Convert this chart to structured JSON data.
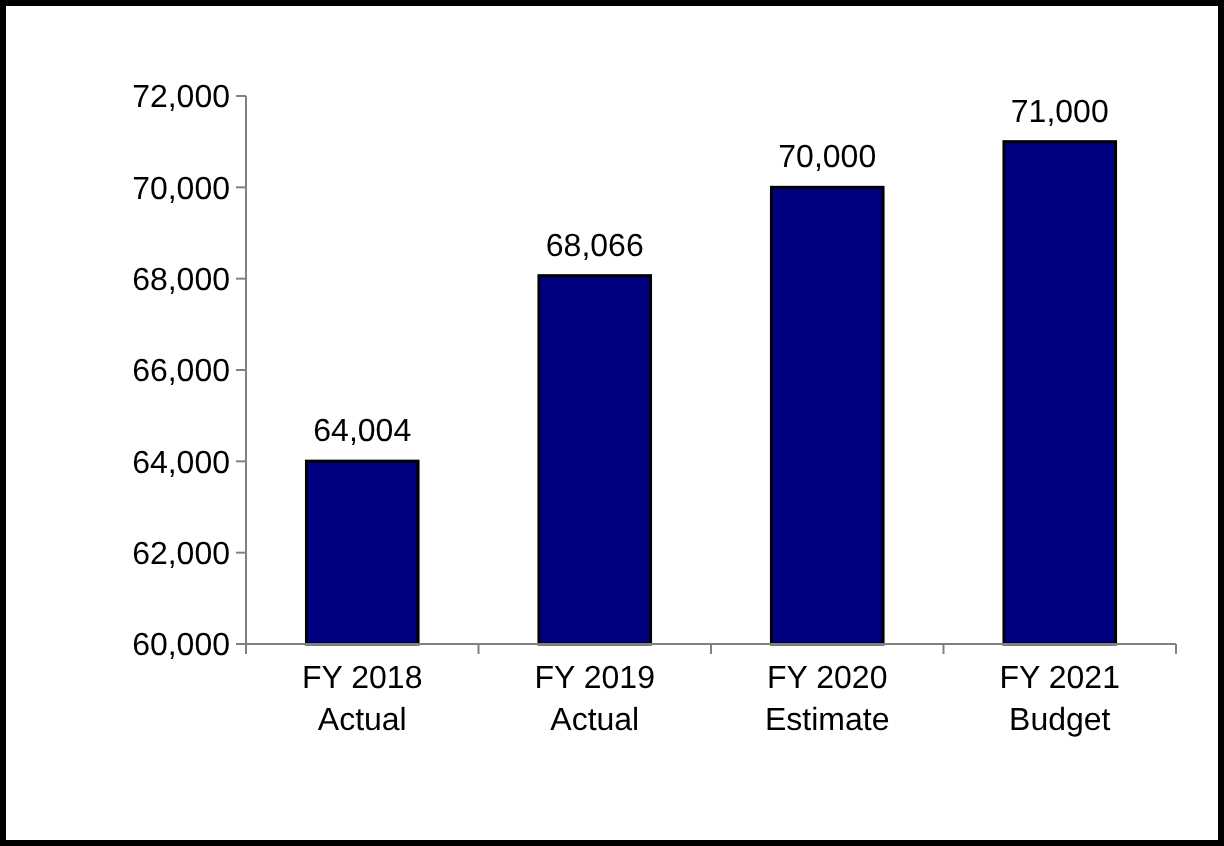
{
  "chart_data": {
    "type": "bar",
    "categories": [
      "FY 2018\nActual",
      "FY 2019\nActual",
      "FY 2020\nEstimate",
      "FY 2021\nBudget"
    ],
    "values": [
      64004,
      68066,
      70000,
      71000
    ],
    "color": "#000080",
    "ylim": [
      60000,
      72000
    ],
    "yticks": [
      {
        "value": 60000,
        "label": "60,000"
      },
      {
        "value": 62000,
        "label": "62,000"
      },
      {
        "value": 64000,
        "label": "64,000"
      },
      {
        "value": 66000,
        "label": "66,000"
      },
      {
        "value": 68000,
        "label": "68,000"
      },
      {
        "value": 70000,
        "label": "70,000"
      },
      {
        "value": 72000,
        "label": "72,000"
      }
    ],
    "value_labels": [
      "64,004",
      "68,066",
      "70,000",
      "71,000"
    ],
    "grid": false
  }
}
